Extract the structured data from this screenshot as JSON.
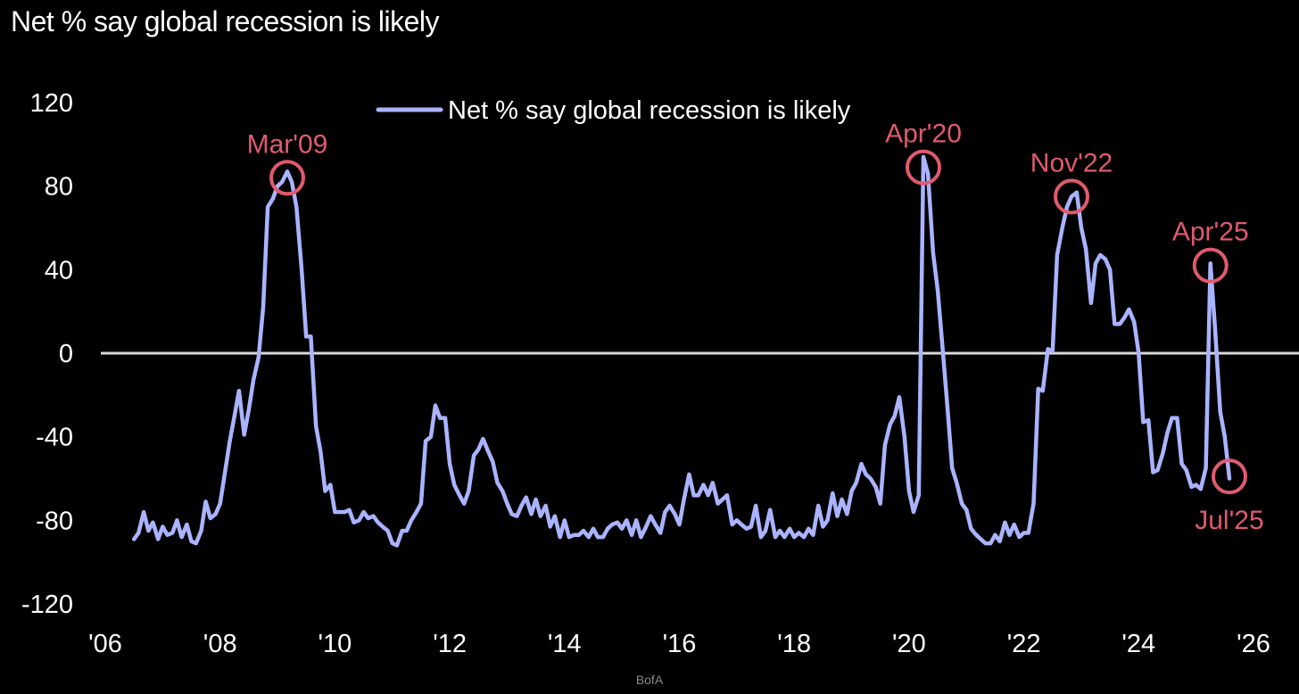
{
  "title": "Net % say global recession is likely",
  "source": "BofA",
  "colors": {
    "background": "#000000",
    "line": "#aab3ff",
    "zero_line": "#d9d9d9",
    "annotation": "#e05a6e",
    "text": "#ffffff"
  },
  "chart_data": {
    "type": "line",
    "title": "Net % say global recession is likely",
    "xlabel": "",
    "ylabel": "",
    "ylim": [
      -120,
      120
    ],
    "xlim": [
      2006.0,
      2026.0
    ],
    "y_ticks": [
      120,
      80,
      40,
      0,
      -40,
      -80,
      -120
    ],
    "y_tick_labels": [
      "120",
      "80",
      "40",
      "0",
      "-40",
      "-80",
      "-120"
    ],
    "x_ticks": [
      2006,
      2008,
      2010,
      2012,
      2014,
      2016,
      2018,
      2020,
      2022,
      2024,
      2026
    ],
    "x_tick_labels": [
      "'06",
      "'08",
      "'10",
      "'12",
      "'14",
      "'16",
      "'18",
      "'20",
      "'22",
      "'24",
      "'26"
    ],
    "grid": false,
    "zero_line": true,
    "legend": {
      "position": "top-center",
      "entries": [
        "Net % say global recession is likely"
      ]
    },
    "series": [
      {
        "name": "Net % say global recession is likely",
        "color": "#aab3ff",
        "points": [
          [
            2006.5,
            -89
          ],
          [
            2006.58,
            -86
          ],
          [
            2006.67,
            -76
          ],
          [
            2006.75,
            -85
          ],
          [
            2006.83,
            -81
          ],
          [
            2006.92,
            -89
          ],
          [
            2007.0,
            -83
          ],
          [
            2007.08,
            -87
          ],
          [
            2007.17,
            -86
          ],
          [
            2007.25,
            -80
          ],
          [
            2007.33,
            -88
          ],
          [
            2007.42,
            -82
          ],
          [
            2007.5,
            -90
          ],
          [
            2007.58,
            -91
          ],
          [
            2007.67,
            -85
          ],
          [
            2007.75,
            -71
          ],
          [
            2007.83,
            -79
          ],
          [
            2007.92,
            -77
          ],
          [
            2008.0,
            -72
          ],
          [
            2008.08,
            -58
          ],
          [
            2008.17,
            -42
          ],
          [
            2008.25,
            -30
          ],
          [
            2008.33,
            -18
          ],
          [
            2008.42,
            -39
          ],
          [
            2008.5,
            -27
          ],
          [
            2008.58,
            -13
          ],
          [
            2008.67,
            -2
          ],
          [
            2008.75,
            22
          ],
          [
            2008.83,
            70
          ],
          [
            2008.92,
            74
          ],
          [
            2009.0,
            80
          ],
          [
            2009.08,
            82
          ],
          [
            2009.17,
            87
          ],
          [
            2009.25,
            82
          ],
          [
            2009.33,
            70
          ],
          [
            2009.42,
            40
          ],
          [
            2009.5,
            8
          ],
          [
            2009.58,
            8
          ],
          [
            2009.67,
            -35
          ],
          [
            2009.75,
            -47
          ],
          [
            2009.83,
            -66
          ],
          [
            2009.92,
            -63
          ],
          [
            2010.0,
            -76
          ],
          [
            2010.08,
            -76
          ],
          [
            2010.17,
            -76
          ],
          [
            2010.25,
            -75
          ],
          [
            2010.33,
            -81
          ],
          [
            2010.42,
            -80
          ],
          [
            2010.5,
            -76
          ],
          [
            2010.58,
            -79
          ],
          [
            2010.67,
            -78
          ],
          [
            2010.75,
            -81
          ],
          [
            2010.83,
            -83
          ],
          [
            2010.92,
            -85
          ],
          [
            2011.0,
            -91
          ],
          [
            2011.08,
            -92
          ],
          [
            2011.17,
            -85
          ],
          [
            2011.25,
            -85
          ],
          [
            2011.33,
            -80
          ],
          [
            2011.42,
            -76
          ],
          [
            2011.5,
            -72
          ],
          [
            2011.58,
            -42
          ],
          [
            2011.67,
            -40
          ],
          [
            2011.75,
            -25
          ],
          [
            2011.83,
            -31
          ],
          [
            2011.92,
            -31
          ],
          [
            2012.0,
            -53
          ],
          [
            2012.08,
            -63
          ],
          [
            2012.17,
            -68
          ],
          [
            2012.25,
            -72
          ],
          [
            2012.33,
            -66
          ],
          [
            2012.42,
            -49
          ],
          [
            2012.5,
            -46
          ],
          [
            2012.58,
            -41
          ],
          [
            2012.67,
            -47
          ],
          [
            2012.75,
            -52
          ],
          [
            2012.83,
            -62
          ],
          [
            2012.92,
            -66
          ],
          [
            2013.0,
            -72
          ],
          [
            2013.08,
            -77
          ],
          [
            2013.17,
            -78
          ],
          [
            2013.25,
            -73
          ],
          [
            2013.33,
            -69
          ],
          [
            2013.42,
            -77
          ],
          [
            2013.5,
            -70
          ],
          [
            2013.58,
            -78
          ],
          [
            2013.67,
            -73
          ],
          [
            2013.75,
            -83
          ],
          [
            2013.83,
            -78
          ],
          [
            2013.92,
            -88
          ],
          [
            2014.0,
            -80
          ],
          [
            2014.08,
            -88
          ],
          [
            2014.17,
            -87
          ],
          [
            2014.25,
            -87
          ],
          [
            2014.33,
            -85
          ],
          [
            2014.42,
            -88
          ],
          [
            2014.5,
            -84
          ],
          [
            2014.58,
            -88
          ],
          [
            2014.67,
            -88
          ],
          [
            2014.75,
            -84
          ],
          [
            2014.83,
            -82
          ],
          [
            2014.92,
            -81
          ],
          [
            2015.0,
            -84
          ],
          [
            2015.08,
            -80
          ],
          [
            2015.17,
            -87
          ],
          [
            2015.25,
            -80
          ],
          [
            2015.33,
            -88
          ],
          [
            2015.42,
            -83
          ],
          [
            2015.5,
            -78
          ],
          [
            2015.58,
            -82
          ],
          [
            2015.67,
            -86
          ],
          [
            2015.75,
            -76
          ],
          [
            2015.83,
            -73
          ],
          [
            2015.92,
            -77
          ],
          [
            2016.0,
            -82
          ],
          [
            2016.08,
            -70
          ],
          [
            2016.17,
            -58
          ],
          [
            2016.25,
            -68
          ],
          [
            2016.33,
            -68
          ],
          [
            2016.42,
            -63
          ],
          [
            2016.5,
            -68
          ],
          [
            2016.58,
            -62
          ],
          [
            2016.67,
            -72
          ],
          [
            2016.75,
            -70
          ],
          [
            2016.83,
            -68
          ],
          [
            2016.92,
            -82
          ],
          [
            2017.0,
            -80
          ],
          [
            2017.08,
            -82
          ],
          [
            2017.17,
            -84
          ],
          [
            2017.25,
            -83
          ],
          [
            2017.33,
            -73
          ],
          [
            2017.42,
            -88
          ],
          [
            2017.5,
            -85
          ],
          [
            2017.58,
            -75
          ],
          [
            2017.67,
            -88
          ],
          [
            2017.75,
            -85
          ],
          [
            2017.83,
            -88
          ],
          [
            2017.92,
            -84
          ],
          [
            2018.0,
            -88
          ],
          [
            2018.08,
            -86
          ],
          [
            2018.17,
            -88
          ],
          [
            2018.25,
            -84
          ],
          [
            2018.33,
            -87
          ],
          [
            2018.42,
            -73
          ],
          [
            2018.5,
            -83
          ],
          [
            2018.58,
            -80
          ],
          [
            2018.67,
            -67
          ],
          [
            2018.75,
            -78
          ],
          [
            2018.83,
            -70
          ],
          [
            2018.92,
            -77
          ],
          [
            2019.0,
            -66
          ],
          [
            2019.08,
            -62
          ],
          [
            2019.17,
            -53
          ],
          [
            2019.25,
            -58
          ],
          [
            2019.33,
            -60
          ],
          [
            2019.42,
            -64
          ],
          [
            2019.5,
            -72
          ],
          [
            2019.58,
            -44
          ],
          [
            2019.67,
            -34
          ],
          [
            2019.75,
            -30
          ],
          [
            2019.83,
            -21
          ],
          [
            2019.92,
            -40
          ],
          [
            2020.0,
            -66
          ],
          [
            2020.08,
            -76
          ],
          [
            2020.17,
            -68
          ],
          [
            2020.25,
            94
          ],
          [
            2020.33,
            86
          ],
          [
            2020.42,
            48
          ],
          [
            2020.5,
            30
          ],
          [
            2020.58,
            4
          ],
          [
            2020.67,
            -26
          ],
          [
            2020.75,
            -55
          ],
          [
            2020.83,
            -62
          ],
          [
            2020.92,
            -72
          ],
          [
            2021.0,
            -75
          ],
          [
            2021.08,
            -84
          ],
          [
            2021.17,
            -87
          ],
          [
            2021.25,
            -89
          ],
          [
            2021.33,
            -91
          ],
          [
            2021.42,
            -91
          ],
          [
            2021.5,
            -87
          ],
          [
            2021.58,
            -90
          ],
          [
            2021.67,
            -81
          ],
          [
            2021.75,
            -87
          ],
          [
            2021.83,
            -82
          ],
          [
            2021.92,
            -88
          ],
          [
            2022.0,
            -86
          ],
          [
            2022.08,
            -86
          ],
          [
            2022.17,
            -72
          ],
          [
            2022.25,
            -17
          ],
          [
            2022.33,
            -18
          ],
          [
            2022.42,
            2
          ],
          [
            2022.5,
            1
          ],
          [
            2022.58,
            47
          ],
          [
            2022.67,
            60
          ],
          [
            2022.75,
            70
          ],
          [
            2022.83,
            75
          ],
          [
            2022.92,
            77
          ],
          [
            2023.0,
            60
          ],
          [
            2023.08,
            50
          ],
          [
            2023.17,
            24
          ],
          [
            2023.25,
            43
          ],
          [
            2023.33,
            47
          ],
          [
            2023.42,
            45
          ],
          [
            2023.5,
            40
          ],
          [
            2023.58,
            14
          ],
          [
            2023.67,
            14
          ],
          [
            2023.75,
            17
          ],
          [
            2023.83,
            21
          ],
          [
            2023.92,
            15
          ],
          [
            2024.0,
            0
          ],
          [
            2024.08,
            -33
          ],
          [
            2024.17,
            -32
          ],
          [
            2024.25,
            -57
          ],
          [
            2024.33,
            -56
          ],
          [
            2024.42,
            -48
          ],
          [
            2024.5,
            -38
          ],
          [
            2024.58,
            -31
          ],
          [
            2024.67,
            -31
          ],
          [
            2024.75,
            -53
          ],
          [
            2024.83,
            -56
          ],
          [
            2024.92,
            -64
          ],
          [
            2025.0,
            -63
          ],
          [
            2025.08,
            -65
          ],
          [
            2025.17,
            -55
          ],
          [
            2025.25,
            43
          ],
          [
            2025.33,
            12
          ],
          [
            2025.42,
            -28
          ],
          [
            2025.5,
            -40
          ],
          [
            2025.58,
            -60
          ]
        ]
      }
    ],
    "annotations": [
      {
        "label": "Mar'09",
        "x": 2009.17,
        "y": 84,
        "label_side": "above"
      },
      {
        "label": "Apr'20",
        "x": 2020.25,
        "y": 89,
        "label_side": "above"
      },
      {
        "label": "Nov'22",
        "x": 2022.83,
        "y": 75,
        "label_side": "above"
      },
      {
        "label": "Apr'25",
        "x": 2025.25,
        "y": 42,
        "label_side": "above"
      },
      {
        "label": "Jul'25",
        "x": 2025.58,
        "y": -59,
        "label_side": "below"
      }
    ]
  }
}
